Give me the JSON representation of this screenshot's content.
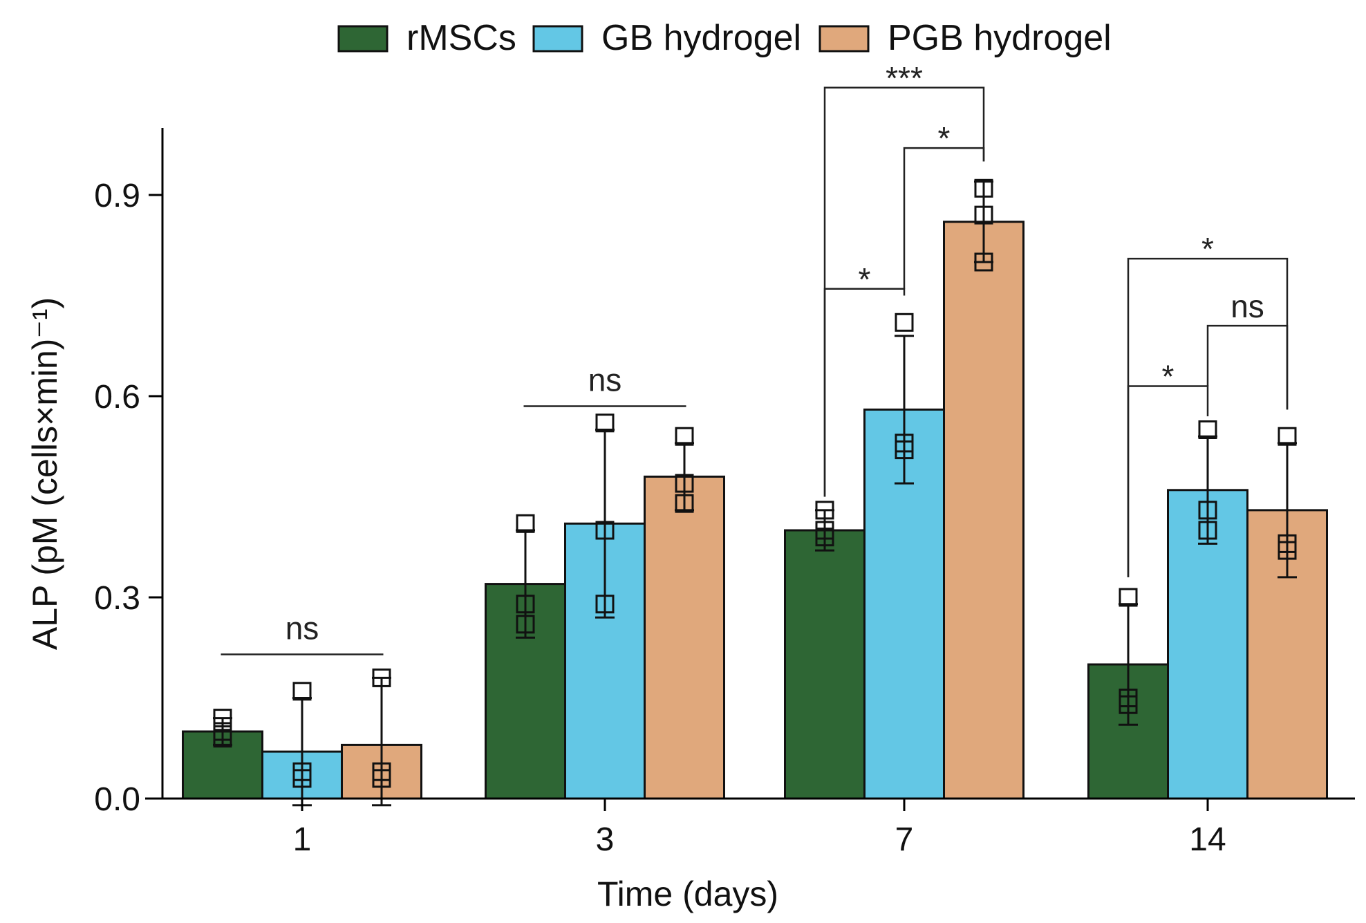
{
  "chart_data": {
    "type": "bar",
    "title": "",
    "xlabel": "Time (days)",
    "ylabel": "ALP (pM (cells×min)⁻¹)",
    "categories": [
      "1",
      "3",
      "7",
      "14"
    ],
    "ylim": [
      0,
      1.0
    ],
    "yticks": [
      "0.0",
      "0.3",
      "0.6",
      "0.9"
    ],
    "ytick_values": [
      0.0,
      0.3,
      0.6,
      0.9
    ],
    "legend_position": "top-center",
    "series": [
      {
        "name": "rMSCs",
        "color": "#2e6634",
        "values": [
          0.1,
          0.32,
          0.4,
          0.2
        ],
        "error": [
          0.02,
          0.08,
          0.03,
          0.09
        ],
        "points": [
          [
            0.12,
            0.1,
            0.09
          ],
          [
            0.41,
            0.29,
            0.26
          ],
          [
            0.43,
            0.4,
            0.39
          ],
          [
            0.3,
            0.15,
            0.14
          ]
        ]
      },
      {
        "name": "GB hydrogel",
        "color": "#63c7e5",
        "values": [
          0.07,
          0.41,
          0.58,
          0.46
        ],
        "error": [
          0.08,
          0.14,
          0.11,
          0.08
        ],
        "points": [
          [
            0.16,
            0.04,
            0.03
          ],
          [
            0.56,
            0.4,
            0.29
          ],
          [
            0.71,
            0.53,
            0.52
          ],
          [
            0.55,
            0.43,
            0.4
          ]
        ]
      },
      {
        "name": "PGB hydrogel",
        "color": "#e0a87c",
        "values": [
          0.08,
          0.48,
          0.86,
          0.43
        ],
        "error": [
          0.1,
          0.05,
          0.06,
          0.1
        ],
        "points": [
          [
            0.18,
            0.04,
            0.03
          ],
          [
            0.54,
            0.47,
            0.44
          ],
          [
            0.91,
            0.87,
            0.8
          ],
          [
            0.54,
            0.38,
            0.37
          ]
        ]
      }
    ],
    "annotations": [
      {
        "group": 0,
        "from": 0,
        "to": 2,
        "label": "ns",
        "style": "line",
        "level": 0.215
      },
      {
        "group": 1,
        "from": 0,
        "to": 2,
        "label": "ns",
        "style": "line",
        "level": 0.585
      },
      {
        "group": 2,
        "from": 0,
        "to": 1,
        "label": "*",
        "style": "bracket",
        "level": 0.76,
        "start_from": 0.45,
        "start_to": 0.75
      },
      {
        "group": 2,
        "from": 1,
        "to": 2,
        "label": "*",
        "style": "bracket",
        "level": 0.97,
        "start_from": 0.76,
        "start_to": 0.95
      },
      {
        "group": 2,
        "from": 0,
        "to": 2,
        "label": "***",
        "style": "bracket",
        "level": 1.06,
        "start_from": 0.45,
        "start_to": 0.95
      },
      {
        "group": 3,
        "from": 0,
        "to": 1,
        "label": "*",
        "style": "bracket",
        "level": 0.615,
        "start_from": 0.33,
        "start_to": 0.57
      },
      {
        "group": 3,
        "from": 1,
        "to": 2,
        "label": "ns",
        "style": "bracket",
        "level": 0.705,
        "start_from": 0.615,
        "start_to": 0.58
      },
      {
        "group": 3,
        "from": 0,
        "to": 2,
        "label": "*",
        "style": "bracket",
        "level": 0.805,
        "start_from": 0.33,
        "start_to": 0.58
      }
    ]
  }
}
